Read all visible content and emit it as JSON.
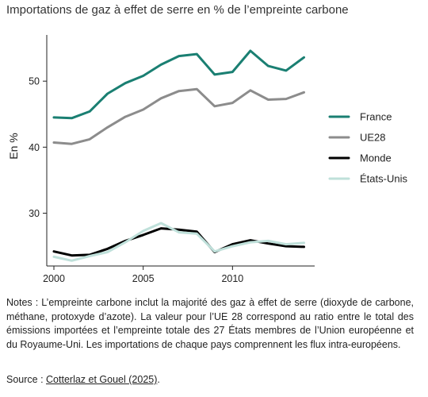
{
  "chart_data": {
    "type": "line",
    "title": "Importations de gaz à effet de serre en % de l’empreinte carbone",
    "ylabel": "En %",
    "xlabel": "",
    "x": [
      2000,
      2001,
      2002,
      2003,
      2004,
      2005,
      2006,
      2007,
      2008,
      2009,
      2010,
      2011,
      2012,
      2013,
      2014
    ],
    "xlim": [
      1999.6,
      2014.6
    ],
    "ylim": [
      22,
      57
    ],
    "xticks": [
      2000,
      2005,
      2010
    ],
    "yticks": [
      30,
      40,
      50
    ],
    "grid": false,
    "legend_position": "right",
    "series": [
      {
        "name": "France",
        "color": "#1a7f72",
        "width": 3,
        "values": [
          44.5,
          44.4,
          45.4,
          48.1,
          49.7,
          50.8,
          52.5,
          53.8,
          54.1,
          51.0,
          51.4,
          54.6,
          52.3,
          51.6,
          53.6
        ]
      },
      {
        "name": "UE28",
        "color": "#8c8c8c",
        "width": 3,
        "values": [
          40.7,
          40.5,
          41.2,
          43.0,
          44.6,
          45.7,
          47.4,
          48.5,
          48.8,
          46.2,
          46.7,
          48.6,
          47.2,
          47.3,
          48.3
        ]
      },
      {
        "name": "Monde",
        "color": "#000000",
        "width": 3,
        "values": [
          24.2,
          23.6,
          23.7,
          24.6,
          25.8,
          26.7,
          27.7,
          27.5,
          27.2,
          24.1,
          25.3,
          25.9,
          25.4,
          25.0,
          24.9
        ]
      },
      {
        "name": "États-Unis",
        "color": "#bfe0da",
        "width": 3,
        "values": [
          23.4,
          22.8,
          23.5,
          24.1,
          25.6,
          27.3,
          28.5,
          27.1,
          26.9,
          24.2,
          25.0,
          25.6,
          25.8,
          25.3,
          25.5
        ]
      }
    ]
  },
  "notes": "Notes : L’empreinte carbone inclut la majorité des gaz à effet de serre (dioxyde de carbone, méthane, protoxyde d’azote). La valeur pour l’UE 28 correspond au ratio entre le total des émissions importées et l’empreinte totale des 27 États membres de l’Union européenne et du Royaume-Uni. Les importations de chaque pays comprennent les flux intra-européens.",
  "source_prefix": "Source : ",
  "source_link": "Cotterlaz et Gouel (2025)",
  "source_suffix": "."
}
